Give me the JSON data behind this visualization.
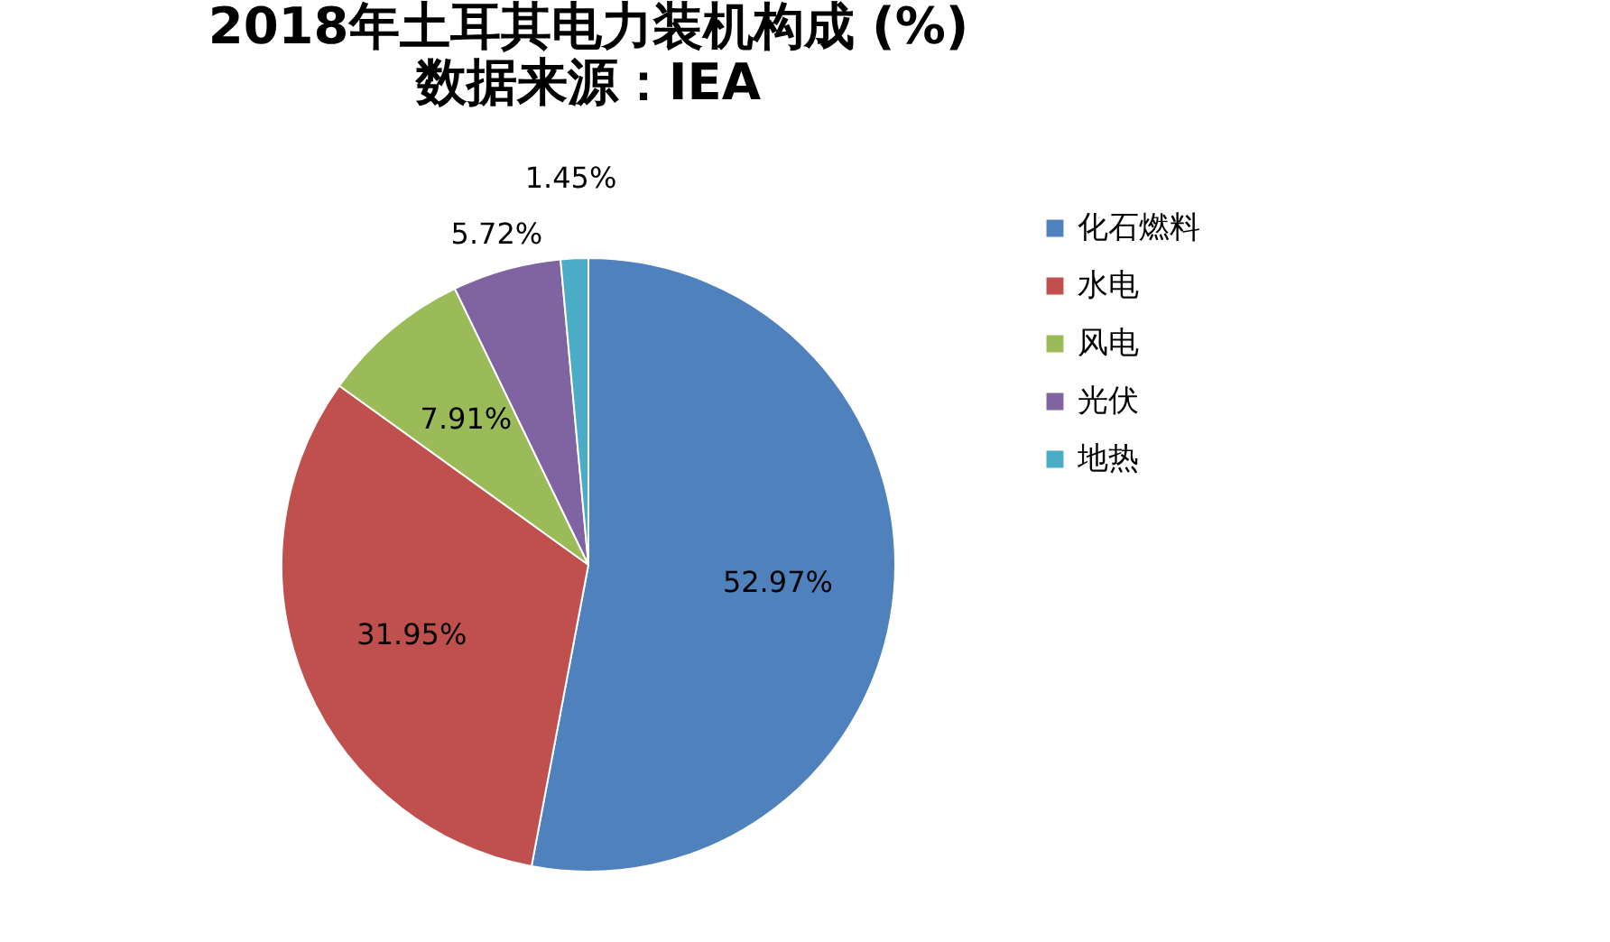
{
  "chart_data": {
    "type": "pie",
    "title": "2018年土耳其电力装机构成 (%)",
    "subtitle": "数据来源：IEA",
    "categories": [
      "化石燃料",
      "水电",
      "风电",
      "光伏",
      "地热"
    ],
    "values": [
      52.97,
      31.95,
      7.91,
      5.72,
      1.45
    ],
    "colors": [
      "#4f81bd",
      "#c0504d",
      "#9bbb59",
      "#8064a2",
      "#4bacc6"
    ],
    "value_labels": [
      "52.97%",
      "31.95%",
      "7.91%",
      "5.72%",
      "1.45%"
    ],
    "legend": "right"
  }
}
